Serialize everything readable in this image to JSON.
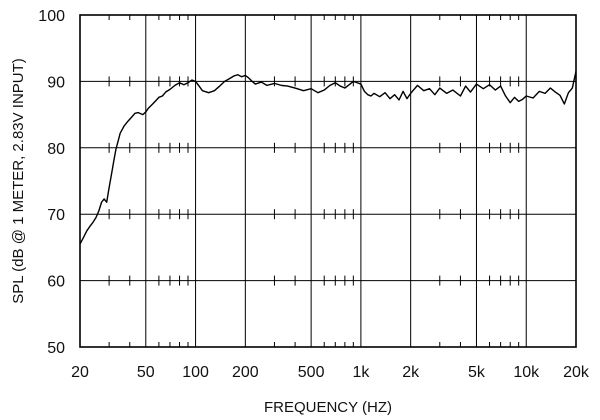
{
  "chart_data": {
    "type": "line",
    "title": "",
    "xlabel": "FREQUENCY  (HZ)",
    "ylabel": "SPL (dB @ 1 METER, 2.83V INPUT)",
    "xscale": "log",
    "xlim": [
      20,
      20000
    ],
    "ylim": [
      50,
      100
    ],
    "grid": true,
    "x_tick_values": [
      20,
      50,
      100,
      200,
      500,
      1000,
      2000,
      5000,
      10000,
      20000
    ],
    "x_tick_labels": [
      "20",
      "50",
      "100",
      "200",
      "500",
      "1k",
      "2k",
      "5k",
      "10k",
      "20k"
    ],
    "y_tick_values": [
      50,
      60,
      70,
      80,
      90,
      100
    ],
    "y_tick_labels": [
      "50",
      "60",
      "70",
      "80",
      "90",
      "100"
    ],
    "series": [
      {
        "x": [
          20,
          21,
          22,
          23,
          24,
          25,
          26,
          27,
          28,
          29,
          30,
          31,
          32,
          33,
          34,
          35,
          37,
          39,
          41,
          43,
          45,
          48,
          50,
          52,
          55,
          58,
          60,
          63,
          66,
          70,
          75,
          80,
          85,
          90,
          95,
          100,
          105,
          110,
          120,
          130,
          140,
          150,
          160,
          170,
          180,
          190,
          200,
          210,
          220,
          230,
          250,
          270,
          300,
          330,
          360,
          400,
          450,
          500,
          550,
          600,
          650,
          700,
          750,
          800,
          850,
          900,
          950,
          1000,
          1050,
          1100,
          1150,
          1200,
          1300,
          1400,
          1500,
          1600,
          1700,
          1800,
          1900,
          2000,
          2200,
          2400,
          2600,
          2800,
          3000,
          3300,
          3600,
          4000,
          4300,
          4600,
          5000,
          5500,
          6000,
          6500,
          7000,
          7500,
          8000,
          8500,
          9000,
          9500,
          10000,
          11000,
          12000,
          13000,
          14000,
          15000,
          16000,
          17000,
          18000,
          19000,
          20000
        ],
        "y": [
          65.5,
          66.5,
          67.5,
          68.2,
          68.8,
          69.5,
          70.5,
          71.8,
          72.3,
          71.8,
          74.0,
          76.0,
          78.0,
          79.8,
          81.0,
          82.2,
          83.3,
          84.0,
          84.6,
          85.2,
          85.3,
          85.0,
          85.4,
          86.0,
          86.6,
          87.2,
          87.6,
          87.8,
          88.4,
          88.8,
          89.4,
          89.8,
          89.5,
          89.8,
          90.2,
          90.0,
          89.3,
          88.6,
          88.3,
          88.6,
          89.3,
          90.0,
          90.4,
          90.8,
          91.0,
          90.7,
          90.9,
          90.5,
          90.0,
          89.6,
          89.9,
          89.4,
          89.7,
          89.4,
          89.3,
          89.0,
          88.6,
          88.9,
          88.3,
          88.7,
          89.4,
          89.8,
          89.3,
          89.0,
          89.5,
          90.0,
          89.8,
          89.6,
          88.5,
          88.0,
          87.8,
          88.2,
          87.7,
          88.3,
          87.4,
          88.0,
          87.2,
          88.5,
          87.4,
          88.2,
          89.4,
          88.6,
          88.9,
          88.0,
          89.0,
          88.2,
          88.7,
          87.8,
          89.3,
          88.4,
          89.6,
          88.9,
          89.5,
          88.7,
          89.3,
          87.8,
          86.8,
          87.6,
          87.0,
          87.3,
          87.8,
          87.5,
          88.5,
          88.2,
          89.0,
          88.4,
          87.9,
          86.6,
          88.3,
          89.0,
          91.5
        ]
      }
    ]
  }
}
